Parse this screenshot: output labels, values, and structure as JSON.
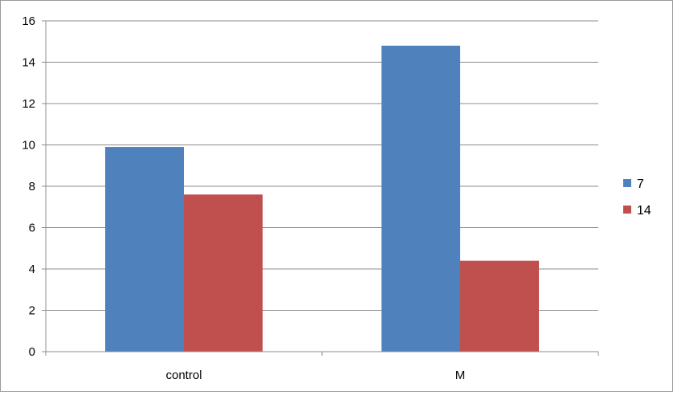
{
  "chart_data": {
    "type": "bar",
    "categories": [
      "control",
      "M"
    ],
    "series": [
      {
        "name": "7",
        "values": [
          9.9,
          14.8
        ],
        "color": "#4f81bd"
      },
      {
        "name": "14",
        "values": [
          7.6,
          4.4
        ],
        "color": "#c0504d"
      }
    ],
    "ylim": [
      0,
      16
    ],
    "yticks": [
      0,
      2,
      4,
      6,
      8,
      10,
      12,
      14,
      16
    ],
    "ytick_labels": [
      "0",
      "2",
      "4",
      "6",
      "8",
      "10",
      "12",
      "14",
      "16"
    ],
    "grid": true,
    "legend_position": "right",
    "title": "",
    "xlabel": "",
    "ylabel": ""
  }
}
